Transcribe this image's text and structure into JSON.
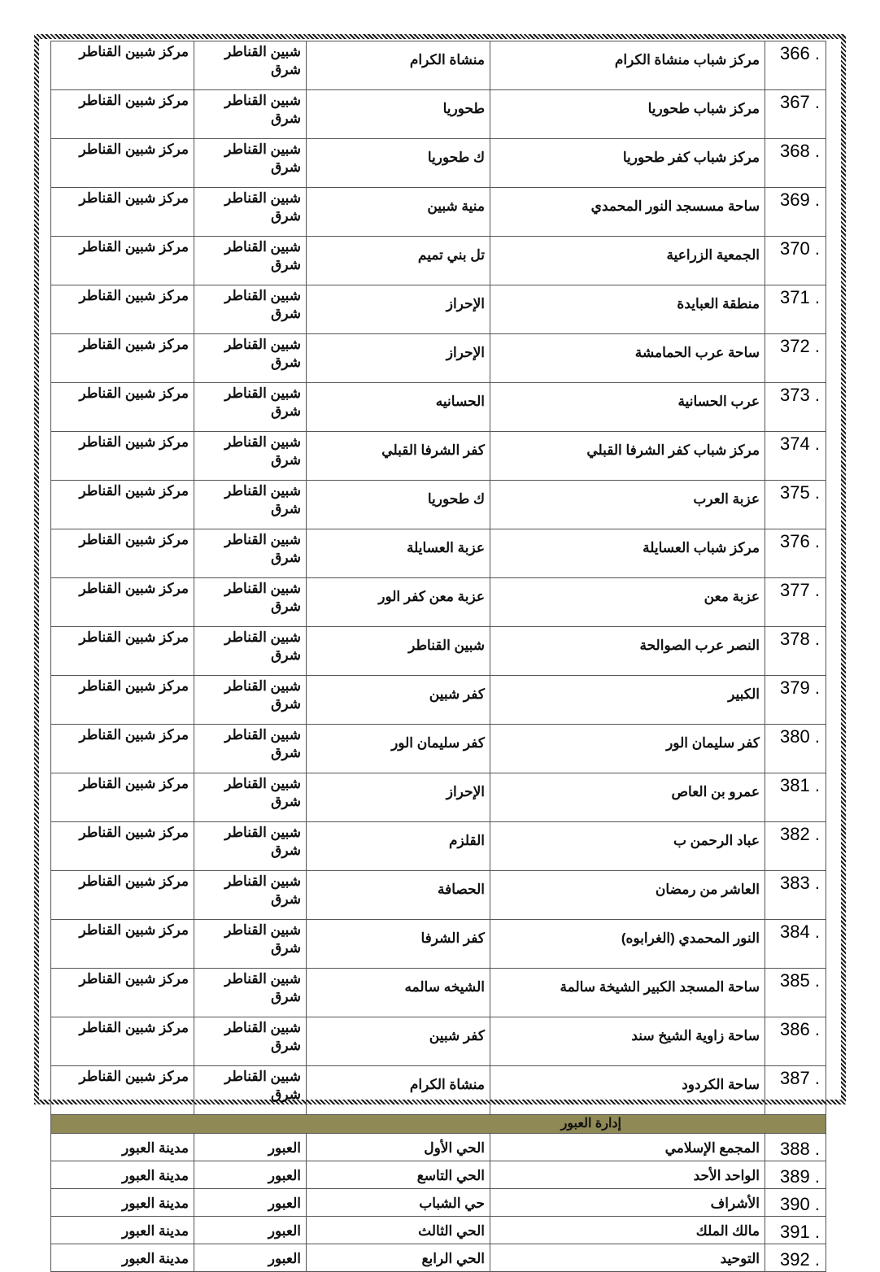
{
  "rows": [
    {
      "num": "366",
      "name": "مركز شباب منشاة الكرام",
      "village": "منشاة الكرام",
      "unit": "شبين القناطر شرق",
      "markaz": "مركز  شبين القناطر"
    },
    {
      "num": "367",
      "name": "مركز شباب طحوريا",
      "village": "طحوريا",
      "unit": "شبين القناطر شرق",
      "markaz": "مركز  شبين القناطر"
    },
    {
      "num": "368",
      "name": "مركز شباب كفر طحوريا",
      "village": "ك طحوريا",
      "unit": "شبين القناطر شرق",
      "markaz": "مركز  شبين القناطر"
    },
    {
      "num": "369",
      "name": "ساحة مسسجد النور المحمدي",
      "village": "منية شبين",
      "unit": "شبين القناطر شرق",
      "markaz": "مركز  شبين القناطر"
    },
    {
      "num": "370",
      "name": "الجمعية الزراعية",
      "village": "تل بني تميم",
      "unit": "شبين القناطر شرق",
      "markaz": "مركز  شبين القناطر"
    },
    {
      "num": "371",
      "name": "منطقة العبايدة",
      "village": "الإحراز",
      "unit": "شبين القناطر شرق",
      "markaz": "مركز  شبين القناطر"
    },
    {
      "num": "372",
      "name": "ساحة عرب الحمامشة",
      "village": "الإحراز",
      "unit": "شبين القناطر شرق",
      "markaz": "مركز  شبين القناطر"
    },
    {
      "num": "373",
      "name": "عرب الحسانية",
      "village": "الحسانيه",
      "unit": "شبين القناطر شرق",
      "markaz": "مركز  شبين القناطر"
    },
    {
      "num": "374",
      "name": "مركز شباب كفر الشرفا القبلي",
      "village": "كفر الشرفا القبلي",
      "unit": "شبين القناطر شرق",
      "markaz": "مركز  شبين القناطر"
    },
    {
      "num": "375",
      "name": "عزبة العرب",
      "village": "ك طحوريا",
      "unit": "شبين القناطر شرق",
      "markaz": "مركز  شبين القناطر"
    },
    {
      "num": "376",
      "name": "مركز شباب العسايلة",
      "village": "عزبة العسايلة",
      "unit": "شبين القناطر شرق",
      "markaz": "مركز  شبين القناطر"
    },
    {
      "num": "377",
      "name": "عزبة معن",
      "village": "عزبة معن  كفر الور",
      "unit": "شبين القناطر شرق",
      "markaz": "مركز  شبين القناطر"
    },
    {
      "num": "378",
      "name": "النصر عرب الصوالحة",
      "village": "شبين القناطر",
      "unit": "شبين القناطر شرق",
      "markaz": "مركز  شبين القناطر"
    },
    {
      "num": "379",
      "name": "الكبير",
      "village": "كفر شبين",
      "unit": "شبين القناطر شرق",
      "markaz": "مركز  شبين القناطر"
    },
    {
      "num": "380",
      "name": "كفر سليمان الور",
      "village": "كفر سليمان الور",
      "unit": "شبين القناطر شرق",
      "markaz": "مركز  شبين القناطر"
    },
    {
      "num": "381",
      "name": "عمرو بن العاص",
      "village": "الإحراز",
      "unit": "شبين القناطر شرق",
      "markaz": "مركز  شبين القناطر"
    },
    {
      "num": "382",
      "name": "عباد الرحمن ب",
      "village": "القلزم",
      "unit": "شبين القناطر شرق",
      "markaz": "مركز  شبين القناطر"
    },
    {
      "num": "383",
      "name": "العاشر من رمضان",
      "village": "الحصافة",
      "unit": "شبين القناطر شرق",
      "markaz": "مركز  شبين القناطر"
    },
    {
      "num": "384",
      "name": "النور المحمدي (الغرابوه)",
      "village": "كفر الشرفا",
      "unit": "شبين القناطر شرق",
      "markaz": "مركز  شبين القناطر"
    },
    {
      "num": "385",
      "name": "ساحة المسجد الكبير الشيخة سالمة",
      "village": "الشيخه سالمه",
      "unit": "شبين القناطر شرق",
      "markaz": "مركز  شبين القناطر"
    },
    {
      "num": "386",
      "name": "ساحة زاوية الشيخ سند",
      "village": "كفر شبين",
      "unit": "شبين القناطر شرق",
      "markaz": "مركز  شبين القناطر"
    },
    {
      "num": "387",
      "name": "ساحة الكردود",
      "village": "منشاة الكرام",
      "unit": "شبين القناطر شرق",
      "markaz": "مركز  شبين القناطر"
    }
  ],
  "section": {
    "title": "إدارة العبور"
  },
  "section_rows": [
    {
      "num": "388",
      "name": "المجمع الإسلامي",
      "village": "الحي الأول",
      "unit": "العبور",
      "markaz": "مدينة العبور"
    },
    {
      "num": "389",
      "name": "الواحد الأحد",
      "village": "الحي التاسع",
      "unit": "العبور",
      "markaz": "مدينة العبور"
    },
    {
      "num": "390",
      "name": "الأشراف",
      "village": "حي الشباب",
      "unit": "العبور",
      "markaz": "مدينة العبور"
    },
    {
      "num": "391",
      "name": "مالك الملك",
      "village": "الحي الثالث",
      "unit": "العبور",
      "markaz": "مدينة العبور"
    },
    {
      "num": "392",
      "name": "التوحيد",
      "village": "الحي الرابع",
      "unit": "العبور",
      "markaz": "مدينة العبور"
    }
  ],
  "colors": {
    "section_header": "#8f8a55"
  }
}
